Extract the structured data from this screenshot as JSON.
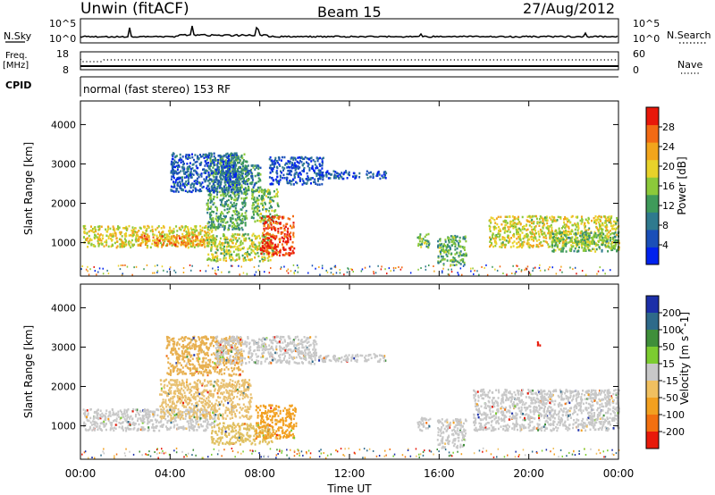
{
  "header": {
    "station": "Unwin (fitACF)",
    "beam": "Beam 15",
    "date": "27/Aug/2012"
  },
  "strip": {
    "nsky_label": "N.Sky",
    "nsky_ticks": [
      "10^5",
      "10^0"
    ],
    "nsearch_label": "N.Search",
    "freq_label": "Freq.",
    "freq_unit": "[MHz]",
    "freq_ticks": [
      "18",
      "8"
    ],
    "nave_ticks": [
      "60",
      "0"
    ],
    "nave_label": "Nave",
    "cpid_label": "CPID",
    "cpid_text": "normal (fast stereo) 153 RF"
  },
  "chart_data": [
    {
      "type": "heatmap",
      "name": "power",
      "ylabel": "Slant Range [km]",
      "xlabel": "",
      "ylim": [
        150,
        4600
      ],
      "xlim": [
        0,
        24
      ],
      "y_ticks": [
        1000,
        2000,
        3000,
        4000
      ],
      "colorbar": {
        "label": "Power [dB]",
        "ticks": [
          4,
          8,
          12,
          16,
          20,
          24,
          28
        ],
        "range": [
          0,
          32
        ],
        "colors": [
          "#0022ee",
          "#1a4fb8",
          "#2f7a8e",
          "#3f9a5a",
          "#8cc93a",
          "#e8d22a",
          "#f2a51c",
          "#f26a14",
          "#e8180a"
        ]
      },
      "regions": [
        {
          "x0": 0.1,
          "x1": 6.0,
          "y0": 900,
          "y1": 1450,
          "level": 0.62
        },
        {
          "x0": 2.5,
          "x1": 5.5,
          "y0": 950,
          "y1": 1200,
          "level": 0.82
        },
        {
          "x0": 5.6,
          "x1": 7.4,
          "y0": 1350,
          "y1": 3300,
          "level": 0.38
        },
        {
          "x0": 6.2,
          "x1": 8.0,
          "y0": 2300,
          "y1": 3000,
          "level": 0.28
        },
        {
          "x0": 4.0,
          "x1": 7.0,
          "y0": 2300,
          "y1": 3300,
          "level": 0.15
        },
        {
          "x0": 5.6,
          "x1": 8.6,
          "y0": 550,
          "y1": 1250,
          "level": 0.55
        },
        {
          "x0": 7.6,
          "x1": 8.8,
          "y0": 1500,
          "y1": 2400,
          "level": 0.45
        },
        {
          "x0": 8.0,
          "x1": 9.5,
          "y0": 700,
          "y1": 1700,
          "level": 0.95
        },
        {
          "x0": 8.4,
          "x1": 10.8,
          "y0": 2500,
          "y1": 3200,
          "level": 0.12
        },
        {
          "x0": 10.6,
          "x1": 13.6,
          "y0": 2650,
          "y1": 2850,
          "level": 0.12
        },
        {
          "x0": 15.0,
          "x1": 15.6,
          "y0": 900,
          "y1": 1250,
          "level": 0.45
        },
        {
          "x0": 15.9,
          "x1": 17.2,
          "y0": 450,
          "y1": 1200,
          "level": 0.4
        },
        {
          "x0": 18.2,
          "x1": 24.0,
          "y0": 900,
          "y1": 1700,
          "level": 0.6
        },
        {
          "x0": 21.0,
          "x1": 24.0,
          "y0": 800,
          "y1": 1300,
          "level": 0.45
        }
      ]
    },
    {
      "type": "heatmap",
      "name": "velocity",
      "ylabel": "Slant Range [km]",
      "xlabel": "Time UT",
      "ylim": [
        150,
        4600
      ],
      "xlim": [
        0,
        24
      ],
      "y_ticks": [
        1000,
        2000,
        3000,
        4000
      ],
      "x_ticks": [
        "00:00",
        "04:00",
        "08:00",
        "12:00",
        "16:00",
        "20:00",
        "00:00"
      ],
      "colorbar": {
        "label": "Velocity [m s^-1]",
        "ticks": [
          "200",
          "100",
          "50",
          "15",
          "-15",
          "-50",
          "-100",
          "-200"
        ],
        "colors": [
          "#1c2fa8",
          "#2e6a8a",
          "#3f8f3a",
          "#7ccc30",
          "#c8c8c8",
          "#f0c060",
          "#f2a020",
          "#f27010",
          "#e81a0a"
        ]
      },
      "regions": [
        {
          "x0": 0.1,
          "x1": 6.0,
          "y0": 900,
          "y1": 1450,
          "color": "#c8c8c8"
        },
        {
          "x0": 3.5,
          "x1": 7.6,
          "y0": 1200,
          "y1": 2200,
          "color": "#e8c070"
        },
        {
          "x0": 3.8,
          "x1": 7.2,
          "y0": 2300,
          "y1": 3300,
          "color": "#e8b050"
        },
        {
          "x0": 6.0,
          "x1": 10.5,
          "y0": 2600,
          "y1": 3300,
          "color": "#c8c8c8"
        },
        {
          "x0": 5.8,
          "x1": 8.6,
          "y0": 550,
          "y1": 1100,
          "color": "#e0c060"
        },
        {
          "x0": 7.8,
          "x1": 9.6,
          "y0": 700,
          "y1": 1550,
          "color": "#f2a020"
        },
        {
          "x0": 10.6,
          "x1": 13.6,
          "y0": 2650,
          "y1": 2850,
          "color": "#c8c8c8"
        },
        {
          "x0": 15.0,
          "x1": 15.6,
          "y0": 900,
          "y1": 1250,
          "color": "#c8c8c8"
        },
        {
          "x0": 15.9,
          "x1": 17.2,
          "y0": 450,
          "y1": 1200,
          "color": "#c8c8c8"
        },
        {
          "x0": 17.5,
          "x1": 24.0,
          "y0": 900,
          "y1": 1950,
          "color": "#c8c8c8"
        },
        {
          "x0": 20.3,
          "x1": 20.5,
          "y0": 3050,
          "y1": 3200,
          "color": "#e81a0a"
        }
      ]
    }
  ]
}
